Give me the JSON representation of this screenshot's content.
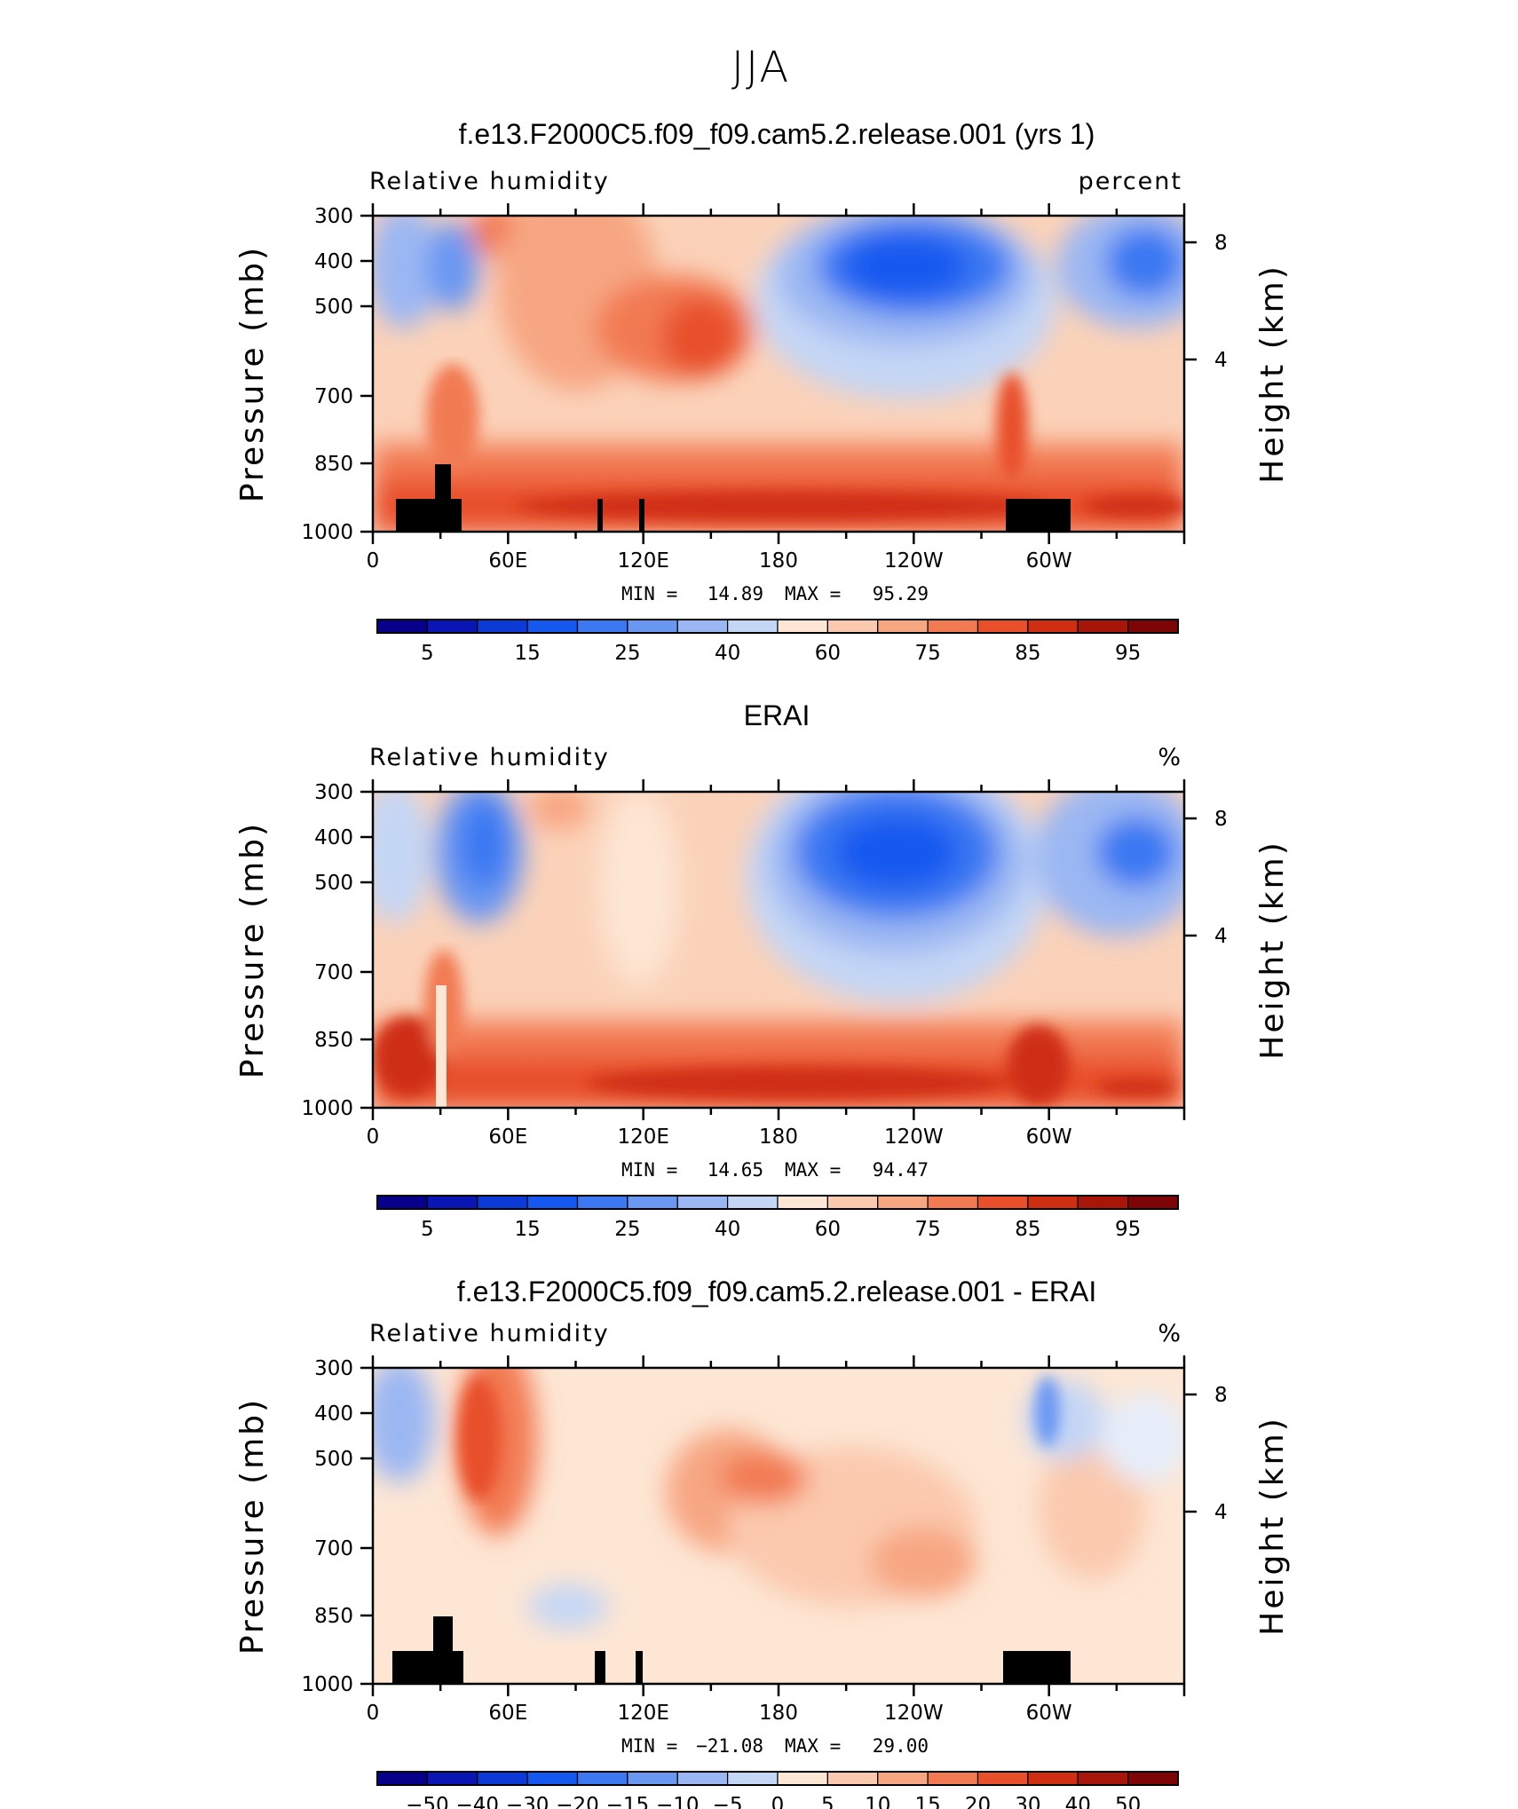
{
  "figure_title": "JJA",
  "chart_data": [
    {
      "type": "heatmap",
      "title": "f.e13.F2000C5.f09_f09.cam5.2.release.001 (yrs 1)",
      "left_label": "Relative humidity",
      "right_label": "percent",
      "ylabel": "Pressure (mb)",
      "ylabel_right": "Height (km)",
      "yticks": [
        "300",
        "400",
        "500",
        "700",
        "850",
        "1000"
      ],
      "yticks_right": [
        "8",
        "4"
      ],
      "xticks": [
        "0",
        "60E",
        "120E",
        "180",
        "120W",
        "60W"
      ],
      "ylim": [
        1000,
        300
      ],
      "min_label": "MIN =",
      "min": "14.89",
      "max_label": "MAX =",
      "max": "95.29",
      "colorbar_labels": [
        "5",
        "15",
        "25",
        "40",
        "60",
        "75",
        "85",
        "95"
      ],
      "levels": [
        5,
        10,
        15,
        20,
        25,
        30,
        40,
        50,
        60,
        70,
        75,
        80,
        85,
        90,
        95
      ]
    },
    {
      "type": "heatmap",
      "title": "ERAI",
      "left_label": "Relative humidity",
      "right_label": "%",
      "ylabel": "Pressure (mb)",
      "ylabel_right": "Height (km)",
      "yticks": [
        "300",
        "400",
        "500",
        "700",
        "850",
        "1000"
      ],
      "yticks_right": [
        "8",
        "4"
      ],
      "xticks": [
        "0",
        "60E",
        "120E",
        "180",
        "120W",
        "60W"
      ],
      "ylim": [
        1000,
        300
      ],
      "min_label": "MIN =",
      "min": "14.65",
      "max_label": "MAX =",
      "max": "94.47",
      "colorbar_labels": [
        "5",
        "15",
        "25",
        "40",
        "60",
        "75",
        "85",
        "95"
      ],
      "levels": [
        5,
        10,
        15,
        20,
        25,
        30,
        40,
        50,
        60,
        70,
        75,
        80,
        85,
        90,
        95
      ]
    },
    {
      "type": "heatmap",
      "title": "f.e13.F2000C5.f09_f09.cam5.2.release.001 - ERAI",
      "left_label": "Relative humidity",
      "right_label": "%",
      "ylabel": "Pressure (mb)",
      "ylabel_right": "Height (km)",
      "yticks": [
        "300",
        "400",
        "500",
        "700",
        "850",
        "1000"
      ],
      "yticks_right": [
        "8",
        "4"
      ],
      "xticks": [
        "0",
        "60E",
        "120E",
        "180",
        "120W",
        "60W"
      ],
      "ylim": [
        1000,
        300
      ],
      "min_label": "MIN =",
      "min": "−21.08",
      "max_label": "MAX =",
      "max": "29.00",
      "colorbar_labels": [
        "−50",
        "−40",
        "−30",
        "−20",
        "−15",
        "−10",
        "−5",
        "0",
        "5",
        "10",
        "15",
        "20",
        "30",
        "40",
        "50"
      ],
      "levels": [
        -50,
        -40,
        -30,
        -20,
        -15,
        -10,
        -5,
        0,
        5,
        10,
        15,
        20,
        30,
        40,
        50
      ]
    }
  ],
  "palette": [
    "#06008a",
    "#0a16b4",
    "#0b3ad6",
    "#1458f0",
    "#3b78f2",
    "#6a97f2",
    "#9bb7f3",
    "#c4d6f5",
    "#e6eefb",
    "#fde6d4",
    "#fbc9ae",
    "#f7a682",
    "#f27a52",
    "#e84f2a",
    "#cf2e13",
    "#a81509",
    "#7d0505"
  ]
}
